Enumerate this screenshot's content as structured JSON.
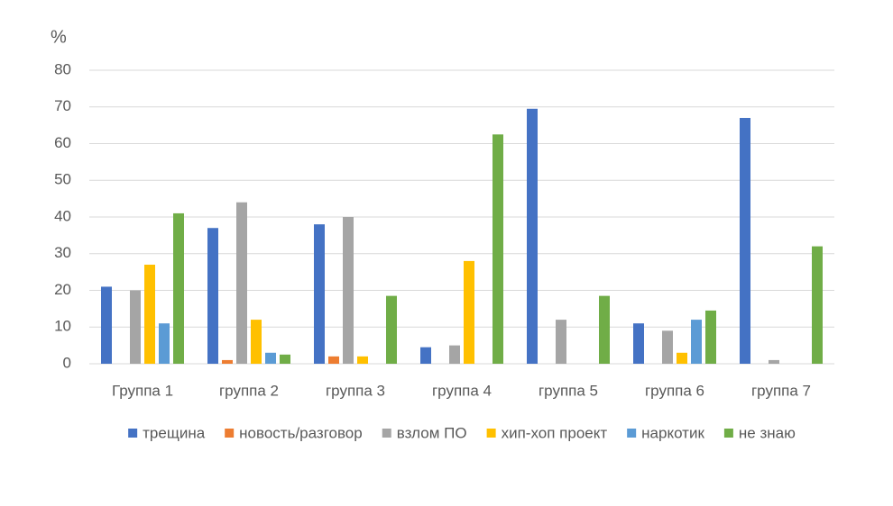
{
  "chart_data": {
    "type": "bar",
    "y_label": "%",
    "categories": [
      "Группа 1",
      "группа 2",
      "группа 3",
      "группа 4",
      "группа 5",
      "группа 6",
      "группа 7"
    ],
    "series": [
      {
        "name": "трещина",
        "color": "#4472c4",
        "values": [
          21,
          37,
          38,
          4.5,
          69.5,
          11,
          67
        ]
      },
      {
        "name": "новость/разговор",
        "color": "#ed7d31",
        "values": [
          0,
          1,
          2,
          0,
          0,
          0,
          0
        ]
      },
      {
        "name": "взлом ПО",
        "color": "#a5a5a5",
        "values": [
          20,
          44,
          40,
          5,
          12,
          9,
          1
        ]
      },
      {
        "name": "хип-хоп проект",
        "color": "#ffc000",
        "values": [
          27,
          12,
          2,
          28,
          0,
          3,
          0
        ]
      },
      {
        "name": "наркотик",
        "color": "#5b9bd5",
        "values": [
          11,
          3,
          0,
          0,
          0,
          12,
          0
        ]
      },
      {
        "name": "не знаю",
        "color": "#70ad47",
        "values": [
          41,
          2.5,
          18.5,
          62.5,
          18.5,
          14.5,
          32
        ]
      }
    ],
    "ylim": [
      0,
      80
    ],
    "yticks": [
      0,
      10,
      20,
      30,
      40,
      50,
      60,
      70,
      80
    ],
    "grid": true,
    "legend": "bottom"
  }
}
